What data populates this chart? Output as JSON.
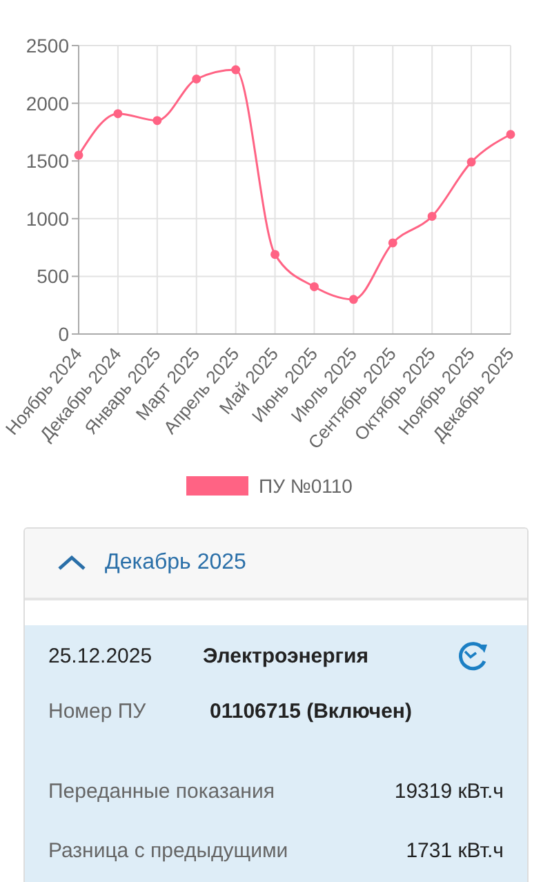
{
  "chart_data": [
    {
      "type": "line",
      "categories": [
        "Ноябрь 2024",
        "Декабрь 2024",
        "Январь 2025",
        "Март 2025",
        "Апрель 2025",
        "Май 2025",
        "Июнь 2025",
        "Июль 2025",
        "Сентябрь 2025",
        "Октябрь 2025",
        "Ноябрь 2025",
        "Декабрь 2025"
      ],
      "series": [
        {
          "name": "ПУ №0110",
          "color": "#ff6384",
          "values": [
            1550,
            1910,
            1850,
            2210,
            2290,
            690,
            410,
            300,
            790,
            1020,
            1490,
            1730
          ]
        }
      ],
      "ylim": [
        0,
        2500
      ],
      "yticks": [
        0,
        500,
        1000,
        1500,
        2000,
        2500
      ],
      "grid": true,
      "legend": "bottom",
      "marker": "circle",
      "line_style": "solid"
    },
    {
      "type": "other",
      "title": "Декабрь 2025",
      "annotations": [
        "25.12.2025",
        "Электроэнергия",
        "Номер ПУ",
        "01106715 (Включен)",
        "Переданные показания",
        "19319 кВт.ч",
        "Разница с предыдущими",
        "1731 кВт.ч"
      ]
    }
  ]
}
